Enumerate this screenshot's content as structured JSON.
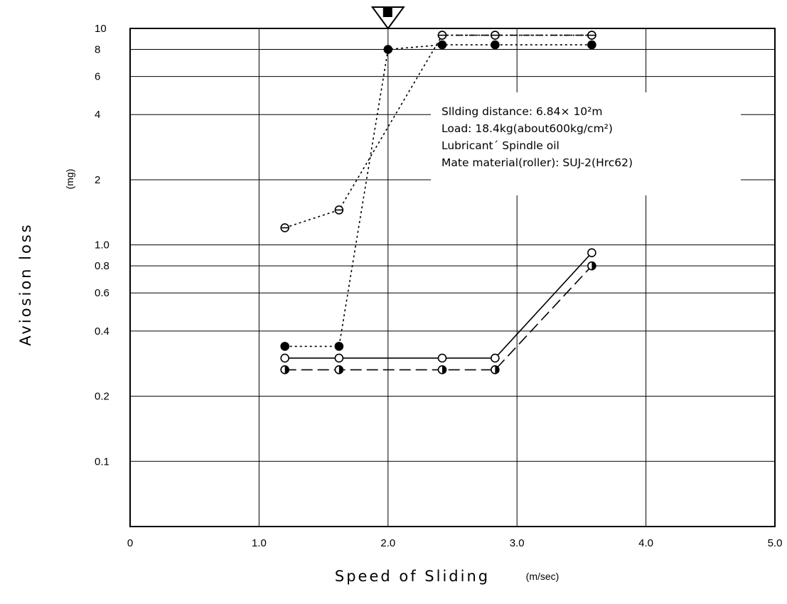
{
  "chart_data": {
    "type": "line",
    "title": "",
    "xlabel": "Speed of Sliding",
    "xunit": "(m/sec)",
    "ylabel": "Aviosion loss",
    "yunit": "(mg)",
    "xlim": [
      0,
      5.0
    ],
    "ylim": [
      0.05,
      10
    ],
    "yscale": "log",
    "grid": true,
    "x_ticks": [
      {
        "value": 0,
        "label": "0"
      },
      {
        "value": 1.0,
        "label": "1.0"
      },
      {
        "value": 2.0,
        "label": "2.0"
      },
      {
        "value": 3.0,
        "label": "3.0"
      },
      {
        "value": 4.0,
        "label": "4.0"
      },
      {
        "value": 5.0,
        "label": "5.0"
      }
    ],
    "y_ticks": [
      {
        "value": 0.1,
        "label": "0.1"
      },
      {
        "value": 0.2,
        "label": "0.2"
      },
      {
        "value": 0.4,
        "label": "0.4"
      },
      {
        "value": 0.6,
        "label": "0.6"
      },
      {
        "value": 0.8,
        "label": "0.8"
      },
      {
        "value": 1.0,
        "label": "1.0"
      },
      {
        "value": 2,
        "label": "2"
      },
      {
        "value": 4,
        "label": "4"
      },
      {
        "value": 6,
        "label": "6"
      },
      {
        "value": 8,
        "label": "8"
      },
      {
        "value": 10,
        "label": "10"
      }
    ],
    "series": [
      {
        "marker": "open-circle",
        "line": "solid",
        "x": [
          1.2,
          1.62,
          2.42,
          2.83,
          3.58
        ],
        "y": [
          0.3,
          0.3,
          0.3,
          0.3,
          0.92
        ]
      },
      {
        "marker": "half-filled-circle",
        "line": "dashed",
        "x": [
          1.2,
          1.62,
          2.42,
          2.83,
          3.58
        ],
        "y": [
          0.265,
          0.265,
          0.265,
          0.265,
          0.8
        ]
      },
      {
        "marker": "filled-circle",
        "line": "dotted",
        "x": [
          1.2,
          1.62,
          2.0,
          2.42,
          2.83,
          3.58
        ],
        "y": [
          0.34,
          0.34,
          8,
          8.4,
          8.4,
          8.4
        ]
      },
      {
        "marker": "barred-circle",
        "line": "dotted",
        "x": [
          1.2,
          1.62,
          2.42,
          2.83,
          3.58
        ],
        "y": [
          1.2,
          1.45,
          9.3,
          9.3,
          9.3
        ]
      },
      {
        "marker": "barred-circle",
        "line": "dashdot",
        "x": [
          2.42,
          2.83,
          3.58
        ],
        "y": [
          9.3,
          9.3,
          9.3
        ]
      }
    ],
    "annotation_marker": {
      "x": 2.0,
      "shape": "triangle-down-with-square"
    },
    "annotation": [
      "Sllding distance: 6.84× 10²m",
      "Load: 18.4kg(about600kg/cm²)",
      "Lubricant´ Spindle oil",
      "Mate material(roller): SUJ-2(Hrc62)"
    ]
  }
}
